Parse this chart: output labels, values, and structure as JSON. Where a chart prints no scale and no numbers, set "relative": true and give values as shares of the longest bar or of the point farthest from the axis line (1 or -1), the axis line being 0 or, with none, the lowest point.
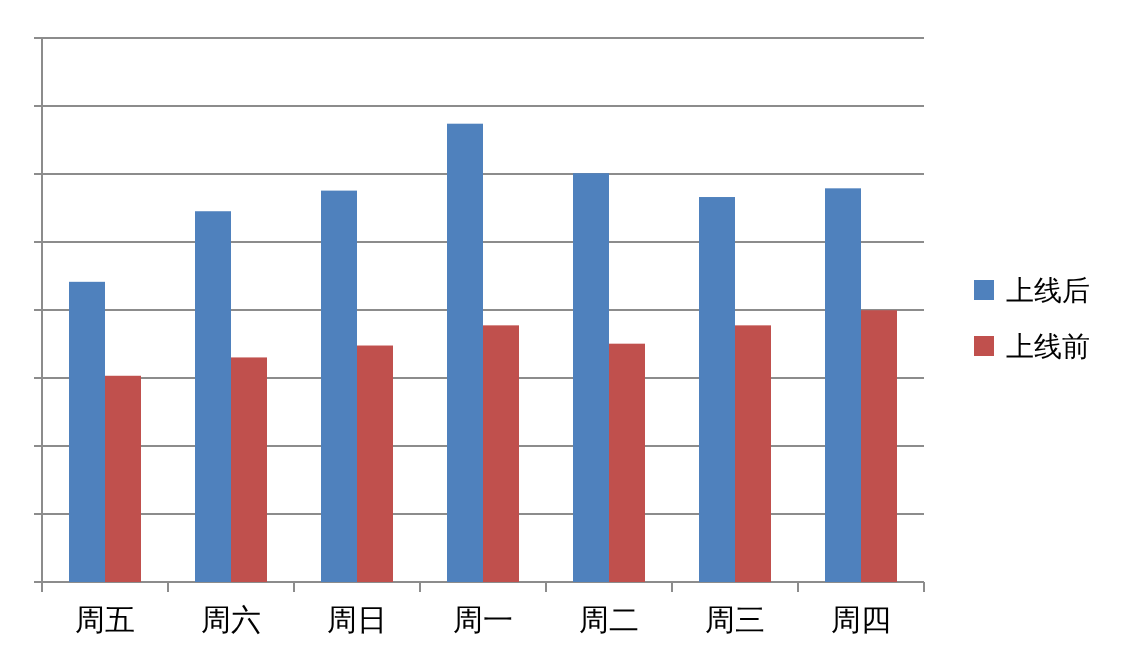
{
  "chart_data": {
    "type": "bar",
    "relative": true,
    "categories": [
      "周五",
      "周六",
      "周日",
      "周一",
      "周二",
      "周三",
      "周四"
    ],
    "series": [
      {
        "name": "上线后",
        "color": "#4f81bd",
        "values": [
          0.655,
          0.809,
          0.854,
          1,
          0.892,
          0.84,
          0.859
        ]
      },
      {
        "name": "上线前",
        "color": "#c0504d",
        "values": [
          0.45,
          0.49,
          0.516,
          0.56,
          0.52,
          0.56,
          0.593
        ]
      }
    ],
    "grid": "y",
    "legend": "right"
  }
}
